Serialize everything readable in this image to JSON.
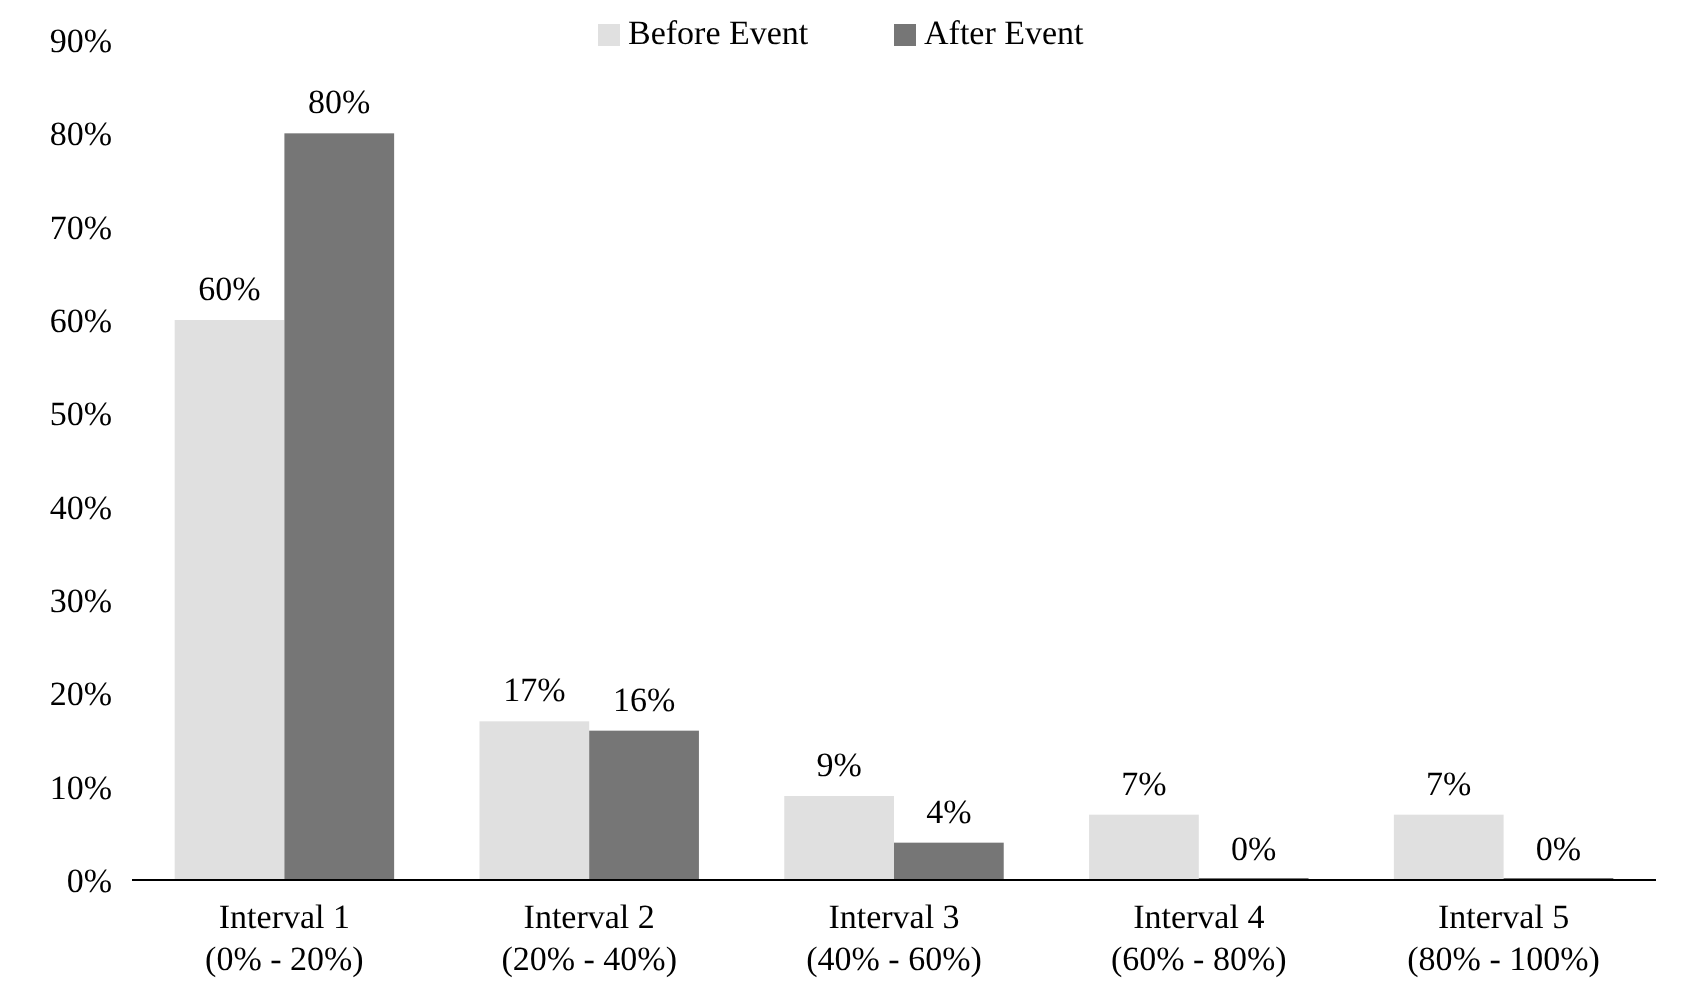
{
  "chart_data": {
    "type": "bar",
    "categories": [
      "Interval 1\n(0% - 20%)",
      "Interval 2\n(20% - 40%)",
      "Interval 3\n(40% - 60%)",
      "Interval 4\n(60% - 80%)",
      "Interval 5\n(80% - 100%)"
    ],
    "series": [
      {
        "name": "Before Event",
        "color": "#e0e0e0",
        "values": [
          60,
          17,
          9,
          7,
          7
        ],
        "value_labels": [
          "60%",
          "17%",
          "9%",
          "7%",
          "7%"
        ]
      },
      {
        "name": "After Event",
        "color": "#767676",
        "values": [
          80,
          16,
          4,
          0,
          0
        ],
        "value_labels": [
          "80%",
          "16%",
          "4%",
          "0%",
          "0%"
        ]
      }
    ],
    "ylim": [
      0,
      90
    ],
    "yticks": [
      {
        "value": 0,
        "label": "0%"
      },
      {
        "value": 10,
        "label": "10%"
      },
      {
        "value": 20,
        "label": "20%"
      },
      {
        "value": 30,
        "label": "30%"
      },
      {
        "value": 40,
        "label": "40%"
      },
      {
        "value": 50,
        "label": "50%"
      },
      {
        "value": 60,
        "label": "60%"
      },
      {
        "value": 70,
        "label": "70%"
      },
      {
        "value": 80,
        "label": "80%"
      },
      {
        "value": 90,
        "label": "90%"
      }
    ],
    "legend": "top",
    "grid": false
  }
}
